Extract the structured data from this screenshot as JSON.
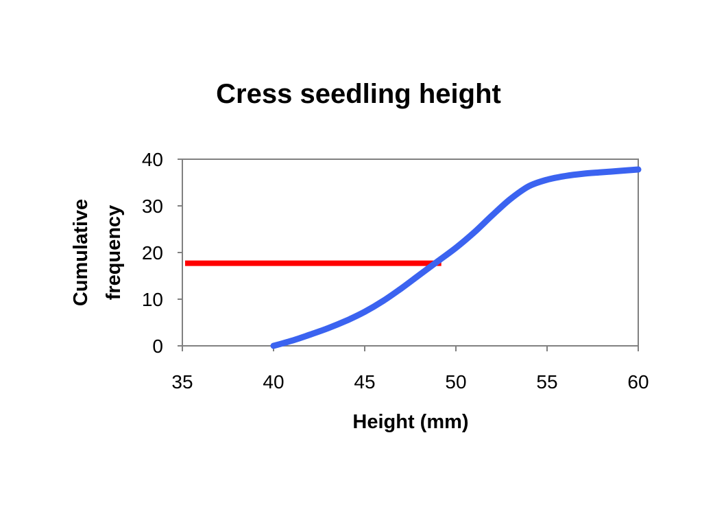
{
  "chart_data": {
    "type": "line",
    "title": "Cress seedling height",
    "xlabel": "Height (mm)",
    "ylabel_lines": [
      "Cumulative",
      "frequency"
    ],
    "xlim": [
      35,
      60
    ],
    "ylim": [
      0,
      40
    ],
    "x_ticks": [
      35,
      40,
      45,
      50,
      55,
      60
    ],
    "y_ticks": [
      0,
      10,
      20,
      30,
      40
    ],
    "grid": false,
    "legend": "none",
    "series": [
      {
        "color": "#3b63f0",
        "x": [
          40,
          41,
          42,
          43,
          44,
          45,
          46,
          47,
          48,
          49,
          50,
          51,
          52,
          53,
          54,
          55,
          56,
          57,
          58,
          59,
          60
        ],
        "y": [
          0,
          1.1,
          2.4,
          3.8,
          5.4,
          7.3,
          9.6,
          12.3,
          15.2,
          18.1,
          21,
          24.3,
          28,
          31.5,
          34.2,
          35.6,
          36.4,
          36.9,
          37.2,
          37.5,
          37.8
        ]
      }
    ],
    "reference_line": {
      "color": "#ff0000",
      "x": [
        35,
        49.2
      ],
      "y": [
        17.7,
        17.7
      ]
    }
  }
}
